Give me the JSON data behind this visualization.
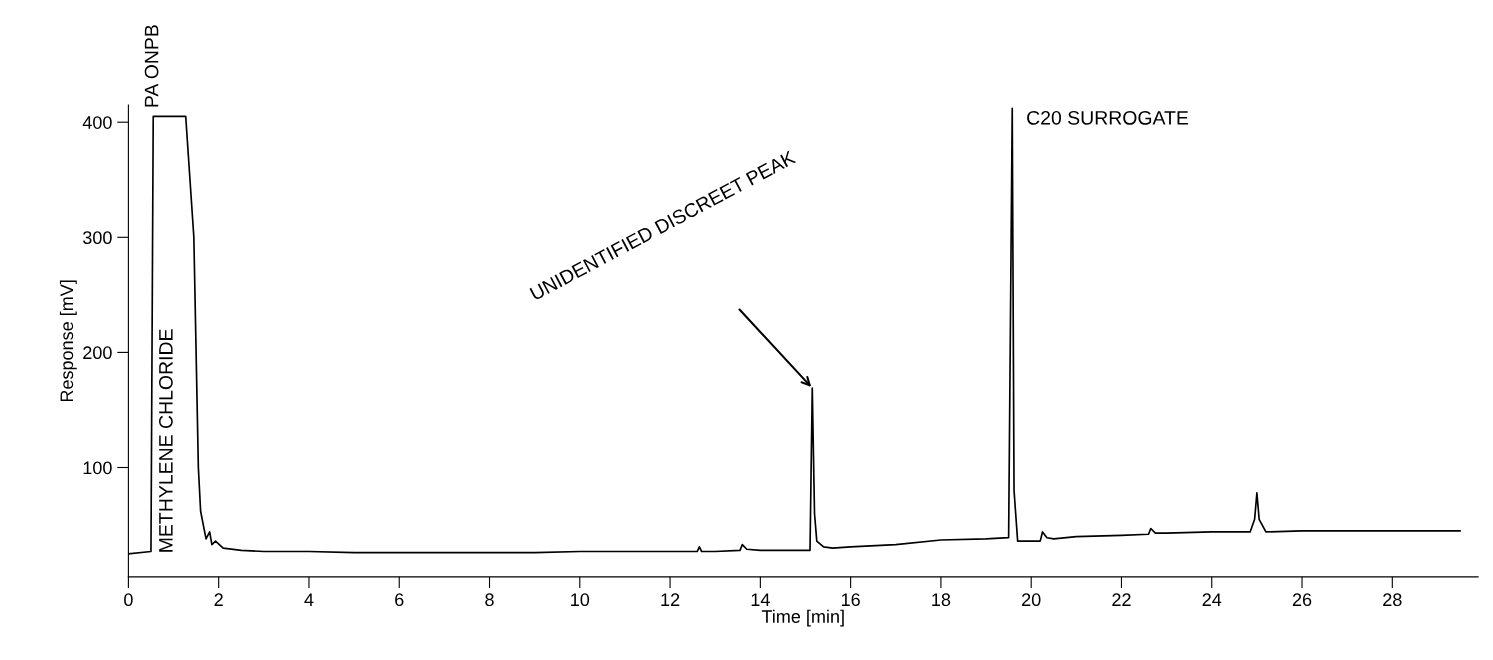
{
  "chart_data": {
    "type": "line",
    "xlabel": "Time [min]",
    "ylabel": "Response [mV]",
    "series": [
      {
        "color": "#000000",
        "x": [
          0,
          0.5,
          0.55,
          1.27,
          1.45,
          1.55,
          1.6,
          1.72,
          1.8,
          1.85,
          1.93,
          2.1,
          2.5,
          3,
          4,
          5,
          6,
          7,
          8,
          9,
          10,
          11,
          12,
          12.6,
          12.65,
          12.7,
          13,
          13.55,
          13.6,
          13.7,
          14,
          15.1,
          15.15,
          15.2,
          15.25,
          15.4,
          15.6,
          16,
          17,
          18,
          19,
          19.5,
          19.58,
          19.62,
          19.7,
          19.8,
          20.2,
          20.25,
          20.35,
          20.5,
          21,
          22,
          22.6,
          22.65,
          22.75,
          23,
          24,
          24.85,
          24.95,
          25.0,
          25.05,
          25.2,
          26,
          27,
          28,
          29.5
        ],
        "values": [
          25,
          27,
          405,
          405,
          300,
          100,
          62,
          38,
          44,
          33,
          36,
          30,
          28,
          27,
          27,
          26,
          26,
          26,
          26,
          26,
          27,
          27,
          27,
          27,
          31,
          27,
          27,
          28,
          33,
          29,
          28,
          28,
          169,
          60,
          36,
          31,
          30,
          31,
          33,
          37,
          38,
          39,
          412,
          80,
          36,
          36,
          36,
          44,
          39,
          38,
          40,
          41,
          42,
          47,
          43,
          43,
          44,
          44,
          55,
          78,
          55,
          44,
          45,
          45,
          45,
          45
        ]
      }
    ],
    "xlim": [
      0,
      29.9
    ],
    "ylim": [
      5,
      415
    ],
    "xticks": [
      0,
      2,
      4,
      6,
      8,
      10,
      12,
      14,
      16,
      18,
      20,
      22,
      24,
      26,
      28
    ],
    "yticks": [
      100,
      200,
      300,
      400
    ],
    "grid": false,
    "legend": false,
    "marker": "none",
    "line_style": "solid",
    "annotations": [
      {
        "text": "PA ONPB",
        "x": 0.55,
        "y": 405
      },
      "METHYLENE CHLORIDE",
      {
        "text": "UNIDENTIFIED DISCREET PEAK",
        "x": 15.15,
        "y": 169
      },
      {
        "text": "C20 SURROGATE",
        "x": 19.58,
        "y": 412
      }
    ]
  }
}
